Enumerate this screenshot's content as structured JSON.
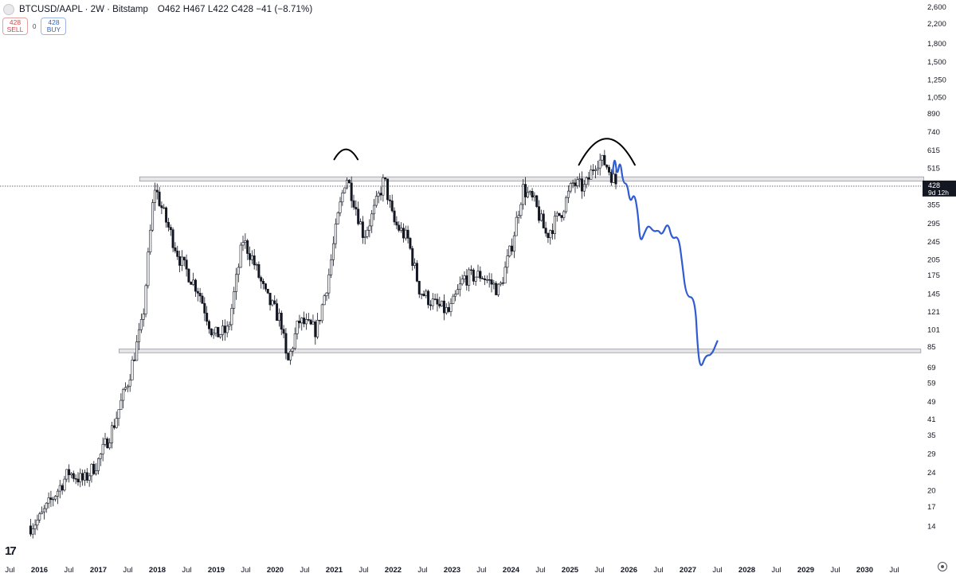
{
  "header": {
    "symbol": "BTCUSD/AAPL · 2W · Bitstamp",
    "ohlc": "O462 H467 L422 C428 −41 (−8.71%)"
  },
  "trade": {
    "sell_price": "428",
    "sell_label": "SELL",
    "spread": "0",
    "buy_price": "428",
    "buy_label": "BUY"
  },
  "price_tag": {
    "value": "428",
    "countdown": "9d 12h"
  },
  "colors": {
    "candle": "#131722",
    "projection": "#2f5bd3",
    "zone_fill": "#e6e6e9",
    "zone_stroke": "#9a9aa0",
    "price_tag": "#131722"
  },
  "icons": [
    "tradingview-logo-icon",
    "settings-gear-icon",
    "symbol-icon"
  ],
  "chart_data": {
    "type": "candlestick",
    "y_scale": "log",
    "ylim": [
      12,
      2700
    ],
    "y_ticks": [
      {
        "label": "2,600",
        "value": 2600
      },
      {
        "label": "2,200",
        "value": 2200
      },
      {
        "label": "1,800",
        "value": 1800
      },
      {
        "label": "1,500",
        "value": 1500
      },
      {
        "label": "1,250",
        "value": 1250
      },
      {
        "label": "1,050",
        "value": 1050
      },
      {
        "label": "890",
        "value": 890
      },
      {
        "label": "740",
        "value": 740
      },
      {
        "label": "615",
        "value": 615
      },
      {
        "label": "515",
        "value": 515
      },
      {
        "label": "355",
        "value": 355
      },
      {
        "label": "295",
        "value": 295
      },
      {
        "label": "245",
        "value": 245
      },
      {
        "label": "205",
        "value": 205
      },
      {
        "label": "175",
        "value": 175
      },
      {
        "label": "145",
        "value": 145
      },
      {
        "label": "121",
        "value": 121
      },
      {
        "label": "101",
        "value": 101
      },
      {
        "label": "85",
        "value": 85
      },
      {
        "label": "69",
        "value": 69
      },
      {
        "label": "59",
        "value": 59
      },
      {
        "label": "49",
        "value": 49
      },
      {
        "label": "41",
        "value": 41
      },
      {
        "label": "35",
        "value": 35
      },
      {
        "label": "29",
        "value": 29
      },
      {
        "label": "24",
        "value": 24
      },
      {
        "label": "20",
        "value": 20
      },
      {
        "label": "17",
        "value": 17
      },
      {
        "label": "14",
        "value": 14
      }
    ],
    "x_ticks": [
      {
        "label": "Jul",
        "t": 2015.5,
        "bold": false
      },
      {
        "label": "2016",
        "t": 2016.0,
        "bold": true
      },
      {
        "label": "Jul",
        "t": 2016.5,
        "bold": false
      },
      {
        "label": "2017",
        "t": 2017.0,
        "bold": true
      },
      {
        "label": "Jul",
        "t": 2017.5,
        "bold": false
      },
      {
        "label": "2018",
        "t": 2018.0,
        "bold": true
      },
      {
        "label": "Jul",
        "t": 2018.5,
        "bold": false
      },
      {
        "label": "2019",
        "t": 2019.0,
        "bold": true
      },
      {
        "label": "Jul",
        "t": 2019.5,
        "bold": false
      },
      {
        "label": "2020",
        "t": 2020.0,
        "bold": true
      },
      {
        "label": "Jul",
        "t": 2020.5,
        "bold": false
      },
      {
        "label": "2021",
        "t": 2021.0,
        "bold": true
      },
      {
        "label": "Jul",
        "t": 2021.5,
        "bold": false
      },
      {
        "label": "2022",
        "t": 2022.0,
        "bold": true
      },
      {
        "label": "Jul",
        "t": 2022.5,
        "bold": false
      },
      {
        "label": "2023",
        "t": 2023.0,
        "bold": true
      },
      {
        "label": "Jul",
        "t": 2023.5,
        "bold": false
      },
      {
        "label": "2024",
        "t": 2024.0,
        "bold": true
      },
      {
        "label": "Jul",
        "t": 2024.5,
        "bold": false
      },
      {
        "label": "2025",
        "t": 2025.0,
        "bold": true
      },
      {
        "label": "Jul",
        "t": 2025.5,
        "bold": false
      },
      {
        "label": "2026",
        "t": 2026.0,
        "bold": true
      },
      {
        "label": "Jul",
        "t": 2026.5,
        "bold": false
      },
      {
        "label": "2027",
        "t": 2027.0,
        "bold": true
      },
      {
        "label": "Jul",
        "t": 2027.5,
        "bold": false
      },
      {
        "label": "2028",
        "t": 2028.0,
        "bold": true
      },
      {
        "label": "Jul",
        "t": 2028.5,
        "bold": false
      },
      {
        "label": "2029",
        "t": 2029.0,
        "bold": true
      },
      {
        "label": "Jul",
        "t": 2029.5,
        "bold": false
      },
      {
        "label": "2030",
        "t": 2030.0,
        "bold": true
      },
      {
        "label": "Jul",
        "t": 2030.5,
        "bold": false
      }
    ],
    "current_price": 428,
    "price_trend": [
      [
        2015.85,
        14
      ],
      [
        2016.0,
        15
      ],
      [
        2016.25,
        19
      ],
      [
        2016.5,
        24
      ],
      [
        2016.75,
        22
      ],
      [
        2017.0,
        27
      ],
      [
        2017.25,
        38
      ],
      [
        2017.5,
        60
      ],
      [
        2017.75,
        110
      ],
      [
        2017.95,
        430
      ],
      [
        2018.15,
        300
      ],
      [
        2018.4,
        200
      ],
      [
        2018.7,
        150
      ],
      [
        2018.95,
        95
      ],
      [
        2019.2,
        100
      ],
      [
        2019.45,
        250
      ],
      [
        2019.6,
        210
      ],
      [
        2019.85,
        140
      ],
      [
        2020.1,
        110
      ],
      [
        2020.2,
        70
      ],
      [
        2020.4,
        110
      ],
      [
        2020.7,
        100
      ],
      [
        2020.9,
        170
      ],
      [
        2021.05,
        300
      ],
      [
        2021.2,
        480
      ],
      [
        2021.35,
        360
      ],
      [
        2021.5,
        260
      ],
      [
        2021.65,
        320
      ],
      [
        2021.85,
        460
      ],
      [
        2022.0,
        300
      ],
      [
        2022.25,
        250
      ],
      [
        2022.45,
        150
      ],
      [
        2022.7,
        130
      ],
      [
        2022.95,
        120
      ],
      [
        2023.2,
        170
      ],
      [
        2023.5,
        175
      ],
      [
        2023.8,
        150
      ],
      [
        2024.0,
        230
      ],
      [
        2024.2,
        420
      ],
      [
        2024.4,
        360
      ],
      [
        2024.6,
        260
      ],
      [
        2024.85,
        330
      ],
      [
        2025.05,
        440
      ],
      [
        2025.25,
        420
      ],
      [
        2025.45,
        560
      ],
      [
        2025.6,
        540
      ],
      [
        2025.8,
        430
      ]
    ],
    "projection": [
      [
        2025.72,
        490
      ],
      [
        2025.76,
        580
      ],
      [
        2025.8,
        470
      ],
      [
        2025.85,
        560
      ],
      [
        2025.9,
        440
      ],
      [
        2025.97,
        440
      ],
      [
        2026.02,
        360
      ],
      [
        2026.09,
        400
      ],
      [
        2026.15,
        330
      ],
      [
        2026.19,
        240
      ],
      [
        2026.27,
        270
      ],
      [
        2026.33,
        290
      ],
      [
        2026.42,
        270
      ],
      [
        2026.5,
        275
      ],
      [
        2026.56,
        260
      ],
      [
        2026.66,
        300
      ],
      [
        2026.73,
        250
      ],
      [
        2026.84,
        260
      ],
      [
        2026.9,
        200
      ],
      [
        2026.97,
        140
      ],
      [
        2027.12,
        140
      ],
      [
        2027.17,
        80
      ],
      [
        2027.22,
        68
      ],
      [
        2027.3,
        78
      ],
      [
        2027.4,
        78
      ],
      [
        2027.5,
        90
      ]
    ],
    "annotations": {
      "resistance_zone": {
        "t_start": 2017.7,
        "t_end": 2031.0,
        "low": 450,
        "high": 470
      },
      "support_zone": {
        "t_start": 2017.35,
        "t_end": 2030.95,
        "low": 80,
        "high": 83
      },
      "top_arc_1": {
        "t_start": 2021.0,
        "t_end": 2021.4,
        "base": 560,
        "peak": 620
      },
      "top_arc_2": {
        "t_start": 2025.15,
        "t_end": 2026.1,
        "base": 530,
        "peak": 690
      }
    }
  }
}
